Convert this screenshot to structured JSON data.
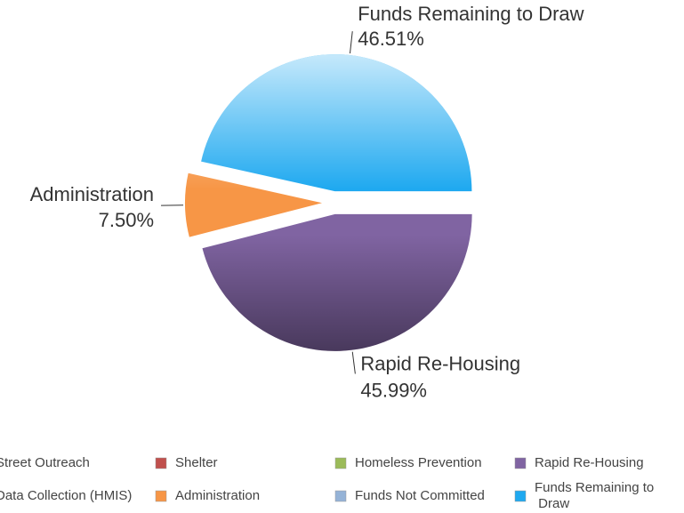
{
  "chart_data": {
    "type": "pie",
    "categories": [
      "Street Outreach",
      "Shelter",
      "Homeless Prevention",
      "Rapid Re-Housing",
      "Data Collection (HMIS)",
      "Administration",
      "Funds Not Committed",
      "Funds Remaining to Draw"
    ],
    "values": [
      0,
      0,
      0,
      45.99,
      0,
      7.5,
      0,
      46.51
    ],
    "value_labels": [
      null,
      null,
      null,
      "45.99%",
      null,
      "7.50%",
      null,
      "46.51%"
    ],
    "colors": [
      "#4f81bd",
      "#c0504d",
      "#9bbb59",
      "#8064a2",
      "#4bacc6",
      "#f79646",
      "#95b3d7",
      "#1fa9f0"
    ],
    "legend": "bottom"
  }
}
